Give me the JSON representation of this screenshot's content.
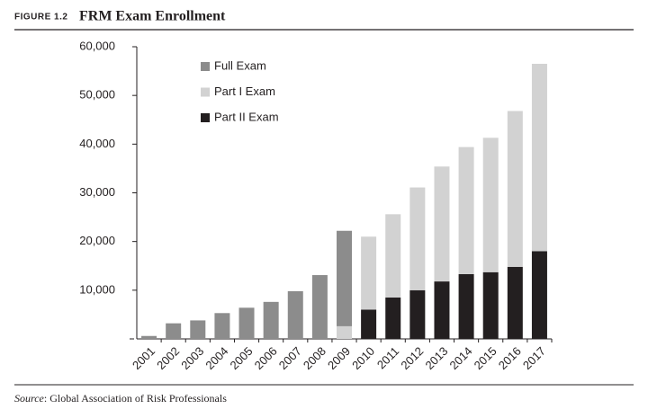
{
  "figure_label": "FIGURE 1.2",
  "source": {
    "label": "Source",
    "text": ": Global Association of Risk Professionals"
  },
  "chart_data": {
    "type": "stacked_bar",
    "title": "FRM Exam Enrollment",
    "categories": [
      "2001",
      "2002",
      "2003",
      "2004",
      "2005",
      "2006",
      "2007",
      "2008",
      "2009",
      "2010",
      "2011",
      "2012",
      "2013",
      "2014",
      "2015",
      "2016",
      "2017"
    ],
    "series": [
      {
        "name": "Part II Exam",
        "color": "#231f20",
        "values": [
          null,
          null,
          null,
          null,
          null,
          null,
          null,
          null,
          null,
          6000,
          8500,
          10000,
          11800,
          13300,
          13700,
          14800,
          18000
        ]
      },
      {
        "name": "Part I Exam",
        "color": "#d2d2d2",
        "values": [
          null,
          null,
          null,
          null,
          null,
          null,
          null,
          null,
          2600,
          15000,
          17100,
          21100,
          23600,
          26100,
          27600,
          32000,
          38500
        ]
      },
      {
        "name": "Full Exam",
        "color": "#8c8c8c",
        "values": [
          600,
          3200,
          3800,
          5300,
          6400,
          7600,
          9800,
          13100,
          19600,
          null,
          null,
          null,
          null,
          null,
          null,
          null,
          null
        ]
      }
    ],
    "ylim": [
      0,
      60000
    ],
    "yticks": [
      {
        "value": 10000,
        "label": "10,000"
      },
      {
        "value": 20000,
        "label": "20,000"
      },
      {
        "value": 30000,
        "label": "30,000"
      },
      {
        "value": 40000,
        "label": "40,000"
      },
      {
        "value": 50000,
        "label": "50,000"
      },
      {
        "value": 60000,
        "label": "60,000"
      }
    ],
    "legend": "upper-left"
  }
}
